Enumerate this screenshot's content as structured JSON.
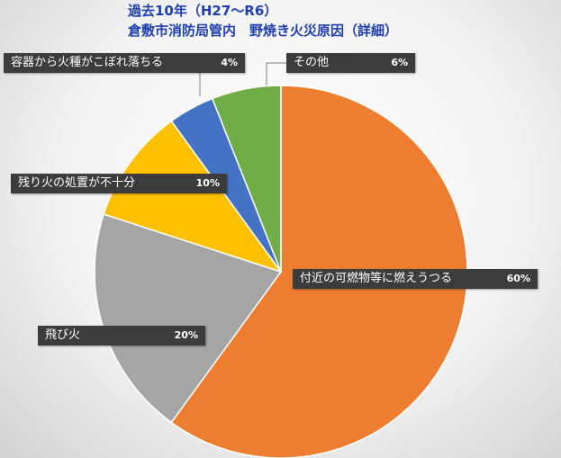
{
  "chart_data": {
    "type": "pie",
    "title_line1": "過去10年（H27～R6）",
    "title_line2": "倉敷市消防局管内　野焼き火災原因（詳細）",
    "slices": [
      {
        "label": "付近の可燃物等に燃えうつる",
        "value": 60,
        "display": "60%",
        "color": "#ed7d31"
      },
      {
        "label": "飛び火",
        "value": 20,
        "display": "20%",
        "color": "#a5a5a5"
      },
      {
        "label": "残り火の処置が不十分",
        "value": 10,
        "display": "10%",
        "color": "#ffc000"
      },
      {
        "label": "容器から火種がこぼれ落ちる",
        "value": 4,
        "display": "4%",
        "color": "#4472c4"
      },
      {
        "label": "その他",
        "value": 6,
        "display": "6%",
        "color": "#70ad47"
      }
    ],
    "start_angle_deg": 0,
    "direction": "clockwise",
    "legend": "none"
  }
}
